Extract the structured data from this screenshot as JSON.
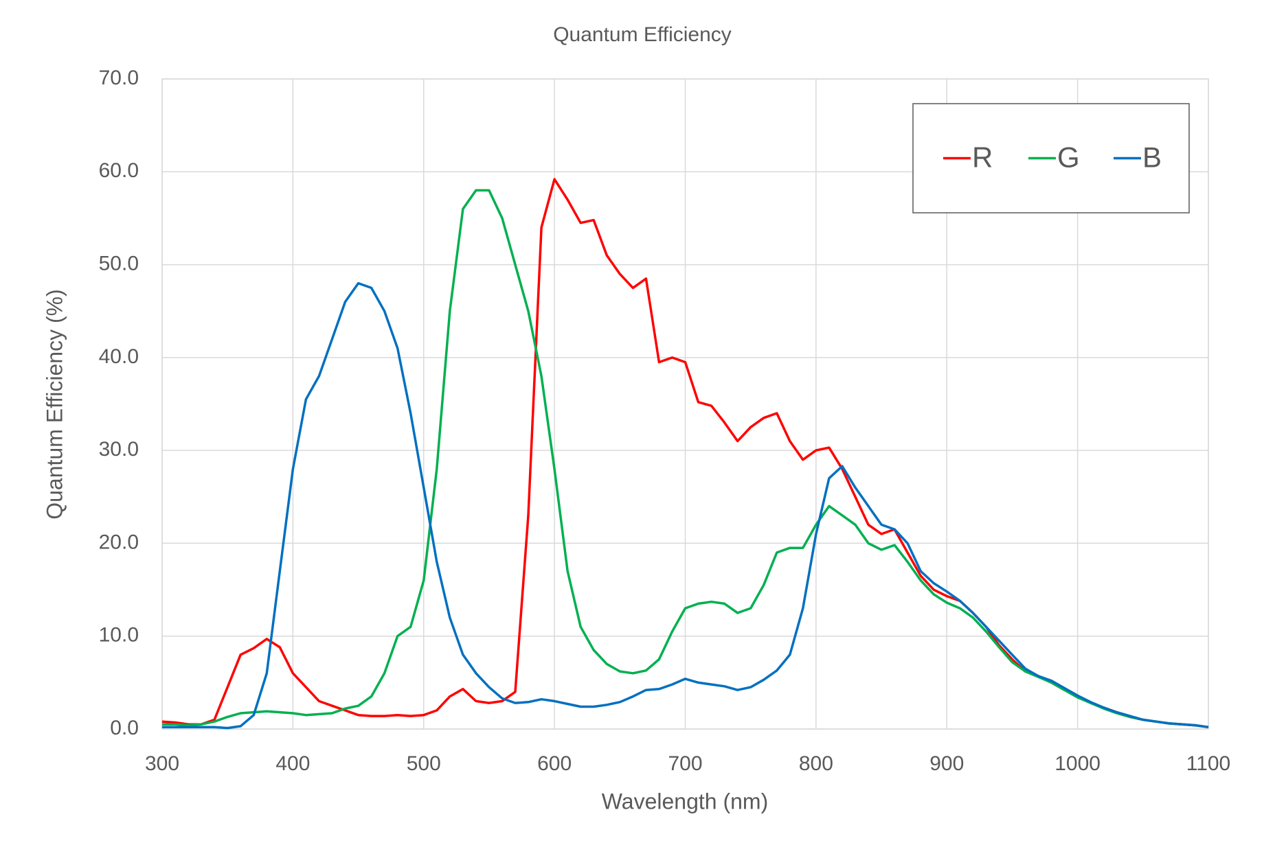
{
  "chart_data": {
    "type": "line",
    "title": "Quantum Efficiency",
    "x_label": "Wavelength (nm)",
    "y_label": "Quantum Efficiency (%)",
    "x": [
      300,
      310,
      320,
      330,
      340,
      350,
      360,
      370,
      380,
      390,
      400,
      410,
      420,
      430,
      440,
      450,
      460,
      470,
      480,
      490,
      500,
      510,
      520,
      530,
      540,
      550,
      560,
      570,
      580,
      590,
      600,
      610,
      620,
      630,
      640,
      650,
      660,
      670,
      680,
      690,
      700,
      710,
      720,
      730,
      740,
      750,
      760,
      770,
      780,
      790,
      800,
      810,
      820,
      830,
      840,
      850,
      860,
      870,
      880,
      890,
      900,
      910,
      920,
      930,
      940,
      950,
      960,
      970,
      980,
      990,
      1000,
      1010,
      1020,
      1030,
      1040,
      1050,
      1060,
      1070,
      1080,
      1090,
      1100
    ],
    "series": [
      {
        "name": "R",
        "color": "#ff0000",
        "values": [
          0.8,
          0.7,
          0.5,
          0.5,
          1.0,
          4.5,
          8.0,
          8.7,
          9.7,
          8.8,
          6.0,
          4.5,
          3.0,
          2.5,
          2.0,
          1.5,
          1.4,
          1.4,
          1.5,
          1.4,
          1.5,
          2.0,
          3.5,
          4.3,
          3.0,
          2.8,
          3.0,
          4.0,
          23,
          54,
          59.2,
          57,
          54.5,
          54.8,
          51,
          49,
          47.5,
          48.5,
          39.5,
          40,
          39.5,
          35.2,
          34.8,
          33,
          31,
          32.5,
          33.5,
          34,
          31,
          29,
          30,
          30.3,
          28,
          25,
          22,
          21,
          21.5,
          19,
          16.5,
          15,
          14.3,
          13.8,
          12.5,
          11,
          9,
          7.5,
          6.2,
          5.7,
          5,
          4.2,
          3.5,
          2.8,
          2.3,
          1.8,
          1.3,
          1.0,
          0.8,
          0.6,
          0.5,
          0.4,
          0.2
        ]
      },
      {
        "name": "G",
        "color": "#00b050",
        "values": [
          0.5,
          0.5,
          0.4,
          0.5,
          0.8,
          1.3,
          1.7,
          1.8,
          1.9,
          1.8,
          1.7,
          1.5,
          1.6,
          1.7,
          2.2,
          2.5,
          3.5,
          6,
          10,
          11,
          16,
          28,
          45,
          56,
          58,
          58,
          55,
          50,
          45,
          38,
          28,
          17,
          11,
          8.5,
          7,
          6.2,
          6,
          6.3,
          7.5,
          10.5,
          13,
          13.5,
          13.7,
          13.5,
          12.5,
          13,
          15.5,
          19,
          19.5,
          19.5,
          22,
          24,
          23,
          22,
          20,
          19.3,
          19.8,
          18,
          16,
          14.5,
          13.6,
          13,
          12,
          10.5,
          8.8,
          7.2,
          6.2,
          5.6,
          5,
          4.2,
          3.4,
          2.8,
          2.2,
          1.7,
          1.3,
          1.0,
          0.8,
          0.6,
          0.5,
          0.4,
          0.2
        ]
      },
      {
        "name": "B",
        "color": "#0070c0",
        "values": [
          0.2,
          0.2,
          0.2,
          0.2,
          0.2,
          0.1,
          0.3,
          1.5,
          6,
          17,
          28,
          35.5,
          38,
          42,
          46,
          48,
          47.5,
          45,
          41,
          34,
          26,
          18,
          12,
          8,
          6,
          4.5,
          3.3,
          2.8,
          2.9,
          3.2,
          3.0,
          2.7,
          2.4,
          2.4,
          2.6,
          2.9,
          3.5,
          4.2,
          4.3,
          4.8,
          5.4,
          5.0,
          4.8,
          4.6,
          4.2,
          4.5,
          5.3,
          6.3,
          8,
          13,
          21,
          27,
          28.3,
          26,
          24,
          22,
          21.5,
          20,
          17,
          15.7,
          14.8,
          13.8,
          12.5,
          11,
          9.5,
          8,
          6.5,
          5.7,
          5.2,
          4.4,
          3.6,
          2.9,
          2.3,
          1.8,
          1.4,
          1.0,
          0.8,
          0.6,
          0.5,
          0.4,
          0.2
        ]
      }
    ],
    "xlim": [
      300,
      1100
    ],
    "xticks": [
      300,
      400,
      500,
      600,
      700,
      800,
      900,
      1000,
      1100
    ],
    "ylim": [
      0,
      70
    ],
    "yticks": [
      {
        "value": 0,
        "label": "0.0"
      },
      {
        "value": 10,
        "label": "10.0"
      },
      {
        "value": 20,
        "label": "20.0"
      },
      {
        "value": 30,
        "label": "30.0"
      },
      {
        "value": 40,
        "label": "40.0"
      },
      {
        "value": 50,
        "label": "50.0"
      },
      {
        "value": 60,
        "label": "60.0"
      },
      {
        "value": 70,
        "label": "70.0"
      }
    ],
    "grid": true,
    "legend": "upper right"
  }
}
